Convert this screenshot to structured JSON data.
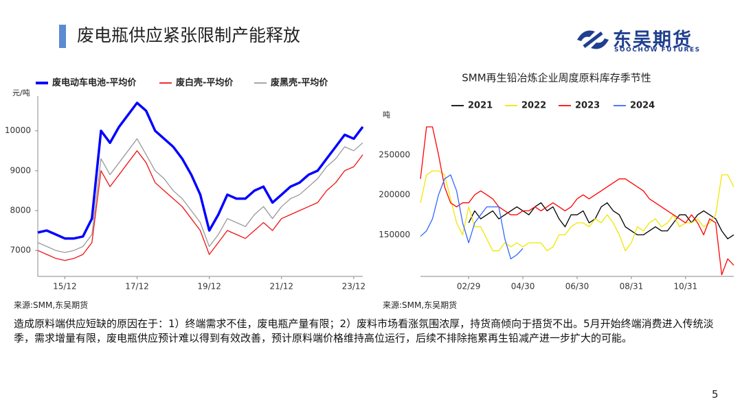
{
  "header": {
    "title": "废电瓶供应紧张限制产能释放",
    "logo": "东吴期货",
    "logo_sub": "SOOCHOW FUTURES"
  },
  "chart_data": [
    {
      "type": "line",
      "y_label": "元/吨",
      "legend": "top",
      "categories": [
        null,
        null,
        null,
        "15/12",
        null,
        null,
        null,
        null,
        null,
        null,
        null,
        "17/12",
        null,
        null,
        null,
        null,
        null,
        null,
        null,
        "19/12",
        null,
        null,
        null,
        null,
        null,
        null,
        null,
        "21/12",
        null,
        null,
        null,
        null,
        null,
        null,
        null,
        "23/12",
        null
      ],
      "series": [
        {
          "name": "废电动车电池-平均价",
          "color": "#0000ff",
          "values": [
            7450,
            7500,
            7400,
            7300,
            7300,
            7350,
            7800,
            10000,
            9700,
            10100,
            10400,
            10700,
            10500,
            10000,
            9800,
            9600,
            9300,
            8900,
            8400,
            7500,
            7900,
            8400,
            8300,
            8300,
            8500,
            8600,
            8200,
            8400,
            8600,
            8700,
            8900,
            9000,
            9300,
            9600,
            9900,
            9800,
            10100
          ]
        },
        {
          "name": "废白壳-平均价",
          "color": "#ee1111",
          "values": [
            7000,
            6900,
            6800,
            6750,
            6800,
            6900,
            7200,
            9000,
            8600,
            8900,
            9200,
            9500,
            9200,
            8700,
            8500,
            8300,
            8100,
            7800,
            7500,
            6900,
            7200,
            7500,
            7400,
            7300,
            7500,
            7700,
            7500,
            7800,
            7900,
            8000,
            8100,
            8200,
            8500,
            8700,
            9000,
            9100,
            9400
          ]
        },
        {
          "name": "废黑壳-平均价",
          "color": "#999999",
          "values": [
            7200,
            7100,
            7000,
            6950,
            7000,
            7100,
            7400,
            9300,
            8900,
            9200,
            9500,
            9800,
            9400,
            9000,
            8800,
            8500,
            8300,
            8000,
            7700,
            7100,
            7400,
            7800,
            7700,
            7600,
            7900,
            8100,
            7800,
            8100,
            8300,
            8400,
            8600,
            8800,
            9100,
            9300,
            9600,
            9500,
            9700
          ]
        }
      ],
      "ylim": [
        6350,
        10700
      ],
      "yticks": [
        7000,
        8000,
        9000,
        10000
      ]
    },
    {
      "type": "line",
      "title": "SMM再生铅冶炼企业周度原料库存季节性",
      "y_label": "吨",
      "legend": "top",
      "categories": [
        null,
        null,
        null,
        null,
        null,
        null,
        null,
        null,
        "02/29",
        null,
        null,
        null,
        null,
        null,
        null,
        null,
        null,
        "04/30",
        null,
        null,
        null,
        null,
        null,
        null,
        null,
        null,
        "06/30",
        null,
        null,
        null,
        null,
        null,
        null,
        null,
        null,
        "08/31",
        null,
        null,
        null,
        null,
        null,
        null,
        null,
        null,
        "10/31",
        null,
        null,
        null,
        null,
        null,
        null,
        null,
        null
      ],
      "series": [
        {
          "name": "2021",
          "color": "#000000",
          "values": [
            null,
            null,
            null,
            null,
            null,
            null,
            null,
            null,
            165000,
            180000,
            170000,
            175000,
            180000,
            170000,
            175000,
            180000,
            185000,
            180000,
            175000,
            185000,
            190000,
            180000,
            185000,
            170000,
            160000,
            175000,
            175000,
            180000,
            165000,
            170000,
            185000,
            190000,
            180000,
            175000,
            160000,
            155000,
            150000,
            150000,
            155000,
            160000,
            155000,
            155000,
            165000,
            175000,
            175000,
            165000,
            175000,
            180000,
            175000,
            170000,
            155000,
            145000,
            150000
          ]
        },
        {
          "name": "2022",
          "color": "#f2e600",
          "values": [
            190000,
            225000,
            230000,
            230000,
            225000,
            195000,
            165000,
            150000,
            185000,
            160000,
            160000,
            145000,
            130000,
            130000,
            140000,
            135000,
            140000,
            135000,
            140000,
            140000,
            140000,
            130000,
            135000,
            150000,
            150000,
            160000,
            165000,
            165000,
            160000,
            170000,
            165000,
            175000,
            165000,
            150000,
            130000,
            140000,
            160000,
            155000,
            165000,
            170000,
            160000,
            165000,
            175000,
            160000,
            165000,
            165000,
            170000,
            160000,
            165000,
            175000,
            225000,
            225000,
            210000
          ]
        },
        {
          "name": "2023",
          "color": "#ff0000",
          "values": [
            220000,
            285000,
            285000,
            250000,
            210000,
            190000,
            185000,
            190000,
            190000,
            200000,
            205000,
            200000,
            195000,
            185000,
            180000,
            175000,
            175000,
            180000,
            180000,
            185000,
            180000,
            185000,
            190000,
            185000,
            180000,
            185000,
            195000,
            200000,
            195000,
            200000,
            205000,
            210000,
            215000,
            220000,
            220000,
            215000,
            210000,
            205000,
            195000,
            190000,
            185000,
            180000,
            175000,
            170000,
            165000,
            175000,
            165000,
            150000,
            170000,
            165000,
            100000,
            120000,
            112000
          ]
        },
        {
          "name": "2024",
          "color": "#3366ff",
          "values": [
            148000,
            155000,
            170000,
            200000,
            220000,
            225000,
            205000,
            165000,
            140000,
            165000,
            175000,
            185000,
            185000,
            185000,
            145000,
            120000,
            125000,
            133000,
            null,
            null,
            null,
            null,
            null,
            null,
            null,
            null,
            null,
            null,
            null,
            null,
            null,
            null,
            null,
            null,
            null,
            null,
            null,
            null,
            null,
            null,
            null,
            null,
            null,
            null,
            null,
            null,
            null,
            null,
            null,
            null,
            null,
            null,
            null
          ]
        }
      ],
      "ylim": [
        98000,
        285000
      ],
      "yticks": [
        150000,
        200000,
        250000
      ]
    }
  ],
  "sources": [
    "来源:SMM,东吴期货",
    "来源:SMM,东吴期货"
  ],
  "body": "造成原料端供应短缺的原因在于：1）终端需求不佳，废电瓶产量有限；2）废料市场看涨氛围浓厚，持货商倾向于捂货不出。5月开始终端消费进入传统淡季，需求增量有限，废电瓶供应预计难以得到有效改善，预计原料端价格维持高位运行，后续不排除拖累再生铅减产进一步扩大的可能。",
  "page_number": "5"
}
